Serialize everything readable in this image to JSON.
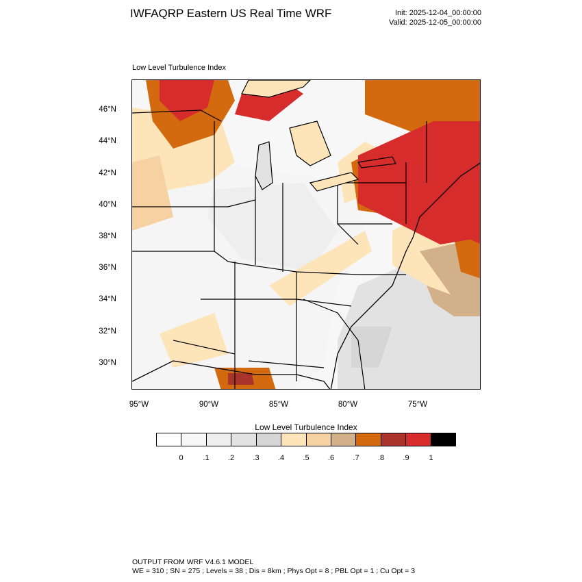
{
  "header": {
    "title": "IWFAQRP Eastern US Real Time WRF",
    "init": "Init: 2025-12-04_00:00:00",
    "valid": "Valid: 2025-12-05_00:00:00"
  },
  "panel": {
    "label": "Low Level Turbulence Index"
  },
  "map": {
    "lat_labels": [
      "46°N",
      "44°N",
      "42°N",
      "40°N",
      "38°N",
      "36°N",
      "34°N",
      "32°N",
      "30°N"
    ],
    "lon_labels": [
      "95°W",
      "90°W",
      "85°W",
      "80°W",
      "75°W"
    ]
  },
  "colorbar": {
    "title": "Low Level Turbulence Index",
    "colors": [
      "#ffffff",
      "#f7f7f7",
      "#eeeeee",
      "#e2e2e2",
      "#d6d6d6",
      "#fde4b9",
      "#f6d2a2",
      "#d2b08a",
      "#d46a10",
      "#a9342c",
      "#d72c2c",
      "#000000"
    ],
    "tick_labels": [
      "0",
      ".1",
      ".2",
      ".3",
      ".4",
      ".5",
      ".6",
      ".7",
      ".8",
      ".9",
      "1"
    ]
  },
  "footer": {
    "line1": "OUTPUT FROM WRF V4.6.1 MODEL",
    "line2": "WE = 310 ; SN = 275 ; Levels = 38 ; Dis = 8km ; Phys Opt = 8 ; PBL Opt = 1 ; Cu Opt = 3"
  }
}
